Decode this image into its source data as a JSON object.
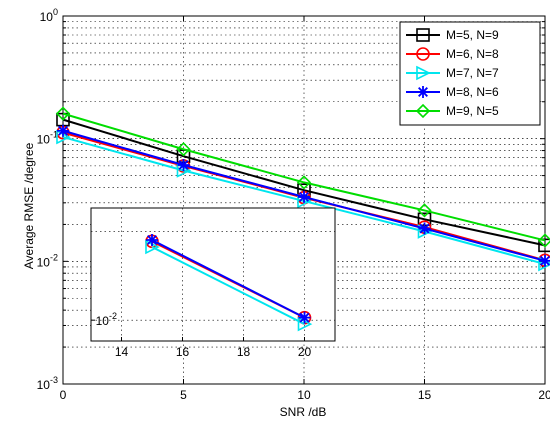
{
  "chart_data": [
    {
      "type": "line",
      "xlabel": "SNR /dB",
      "ylabel": "Average RMSE /degree",
      "xlim": [
        0,
        20
      ],
      "ylim": [
        0.001,
        1
      ],
      "yscale": "log",
      "grid": true,
      "legend": "top-right",
      "x": [
        0,
        5,
        10,
        15,
        20
      ],
      "x_ticks": [
        "0",
        "5",
        "10",
        "15",
        "20"
      ],
      "y_ticks": [
        {
          "value": 0.001,
          "base": "10",
          "exp": "-3"
        },
        {
          "value": 0.01,
          "base": "10",
          "exp": "-2"
        },
        {
          "value": 0.1,
          "base": "10",
          "exp": "-1"
        },
        {
          "value": 1,
          "base": "10",
          "exp": "0"
        }
      ],
      "series": [
        {
          "name": "M=5, N=9",
          "color": "#000000",
          "marker": "square",
          "values": [
            0.143,
            0.072,
            0.038,
            0.022,
            0.0135
          ]
        },
        {
          "name": "M=6, N=8",
          "color": "#ff0000",
          "marker": "circle",
          "values": [
            0.112,
            0.06,
            0.033,
            0.019,
            0.0102
          ]
        },
        {
          "name": "M=7, N=7",
          "color": "#00e5ee",
          "marker": "triangle-right",
          "values": [
            0.103,
            0.055,
            0.031,
            0.0175,
            0.0095
          ]
        },
        {
          "name": "M=8, N=6",
          "color": "#0000ff",
          "marker": "asterisk",
          "values": [
            0.116,
            0.061,
            0.0335,
            0.0185,
            0.0101
          ]
        },
        {
          "name": "M=9, N=5",
          "color": "#00dd00",
          "marker": "diamond",
          "values": [
            0.16,
            0.082,
            0.044,
            0.026,
            0.0148
          ]
        }
      ]
    },
    {
      "type": "line",
      "role": "inset",
      "xlim": [
        13,
        21
      ],
      "x_ticks": [
        "14",
        "16",
        "18",
        "20"
      ],
      "y_ticks": [
        {
          "value": 0.01,
          "base": "10",
          "exp": "-2"
        }
      ],
      "grid": true,
      "x": [
        15,
        20
      ],
      "series": [
        {
          "color": "#ff0000",
          "marker": "circle",
          "values": [
            0.0185,
            0.0102
          ]
        },
        {
          "color": "#00e5ee",
          "marker": "triangle-right",
          "values": [
            0.0177,
            0.0097
          ]
        },
        {
          "color": "#0000ff",
          "marker": "asterisk",
          "values": [
            0.0187,
            0.0102
          ]
        }
      ]
    }
  ]
}
